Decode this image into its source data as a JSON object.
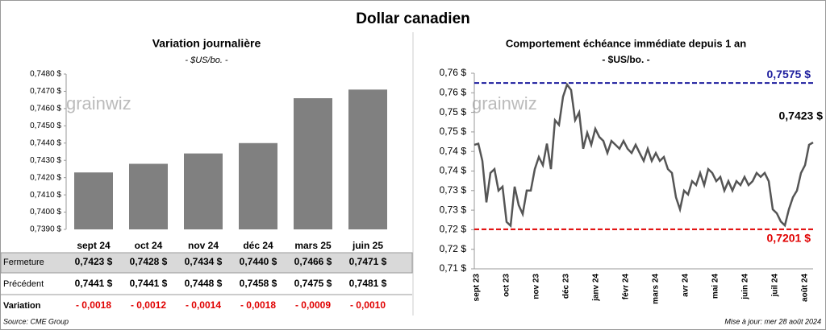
{
  "title": "Dollar canadien",
  "watermark": "grainwiz",
  "chart_data": [
    {
      "type": "bar",
      "title": "Variation  journalière",
      "subtitle": "- $US/bo. -",
      "color": "#808080",
      "categories": [
        "sept 24",
        "oct 24",
        "nov 24",
        "déc 24",
        "mars 25",
        "juin 25"
      ],
      "values": [
        0.7423,
        0.7428,
        0.7434,
        0.744,
        0.7466,
        0.7471
      ],
      "ylim": [
        0.739,
        0.748
      ],
      "yticks": [
        {
          "value": 0.739,
          "label": "0,7390 $"
        },
        {
          "value": 0.74,
          "label": "0,7400 $"
        },
        {
          "value": 0.741,
          "label": "0,7410 $"
        },
        {
          "value": 0.742,
          "label": "0,7420 $"
        },
        {
          "value": 0.743,
          "label": "0,7430 $"
        },
        {
          "value": 0.744,
          "label": "0,7440 $"
        },
        {
          "value": 0.745,
          "label": "0,7450 $"
        },
        {
          "value": 0.746,
          "label": "0,7460 $"
        },
        {
          "value": 0.747,
          "label": "0,7470 $"
        },
        {
          "value": 0.748,
          "label": "0,7480 $"
        }
      ]
    },
    {
      "type": "line",
      "title": "Comportement échéance immédiate depuis 1 an",
      "subtitle": "- $US/bo. -",
      "color": "#555555",
      "x_labels": [
        "sept 23",
        "oct 23",
        "nov 23",
        "déc 23",
        "janv 24",
        "févr 24",
        "mars 24",
        "avr 24",
        "mai 24",
        "juin 24",
        "juil 24",
        "août 24"
      ],
      "values": [
        0.7417,
        0.742,
        0.7376,
        0.727,
        0.7345,
        0.7355,
        0.73,
        0.731,
        0.722,
        0.721,
        0.731,
        0.7263,
        0.724,
        0.73,
        0.73,
        0.7355,
        0.7386,
        0.7365,
        0.742,
        0.7355,
        0.748,
        0.7468,
        0.754,
        0.7571,
        0.7557,
        0.748,
        0.75,
        0.7407,
        0.7448,
        0.7417,
        0.7458,
        0.7437,
        0.7427,
        0.7396,
        0.7427,
        0.7417,
        0.7407,
        0.7427,
        0.7407,
        0.7396,
        0.7417,
        0.7396,
        0.7376,
        0.7407,
        0.7376,
        0.7396,
        0.7376,
        0.7386,
        0.7355,
        0.7345,
        0.7283,
        0.7252,
        0.73,
        0.729,
        0.7324,
        0.7314,
        0.7345,
        0.7314,
        0.7355,
        0.7345,
        0.7324,
        0.7335,
        0.73,
        0.7324,
        0.73,
        0.7324,
        0.7314,
        0.7335,
        0.7314,
        0.7324,
        0.7345,
        0.7335,
        0.7345,
        0.7324,
        0.7252,
        0.7242,
        0.7221,
        0.7211,
        0.7252,
        0.7283,
        0.73,
        0.7345,
        0.7365,
        0.7417,
        0.7423
      ],
      "end_label": "0,7423 $",
      "reference_lines": [
        {
          "value": 0.7575,
          "label": "0,7575 $",
          "color": "#1f1f9e"
        },
        {
          "value": 0.7201,
          "label": "0,7201 $",
          "color": "#e00000"
        }
      ],
      "ylim": [
        0.71,
        0.76
      ],
      "yticks": [
        {
          "value": 0.71,
          "label": "0,71 $"
        },
        {
          "value": 0.715,
          "label": "0,72 $"
        },
        {
          "value": 0.72,
          "label": "0,72 $"
        },
        {
          "value": 0.725,
          "label": "0,73 $"
        },
        {
          "value": 0.73,
          "label": "0,73 $"
        },
        {
          "value": 0.735,
          "label": "0,74 $"
        },
        {
          "value": 0.74,
          "label": "0,74 $"
        },
        {
          "value": 0.745,
          "label": "0,75 $"
        },
        {
          "value": 0.75,
          "label": "0,75 $"
        },
        {
          "value": 0.755,
          "label": "0,76 $"
        },
        {
          "value": 0.76,
          "label": "0,76 $"
        }
      ]
    }
  ],
  "table": {
    "rows": [
      [
        "Fermeture",
        "0,7423 $",
        "0,7428 $",
        "0,7434 $",
        "0,7440 $",
        "0,7466 $",
        "0,7471 $"
      ],
      [
        "Précédent",
        "0,7441 $",
        "0,7441 $",
        "0,7448 $",
        "0,7458 $",
        "0,7475 $",
        "0,7481 $"
      ],
      [
        "Variation",
        "- 0,0018",
        "- 0,0012",
        "- 0,0014",
        "- 0,0018",
        "- 0,0009",
        "- 0,0010"
      ]
    ]
  },
  "footer": {
    "source": "Source: CME Group",
    "updated": "Mise à jour: mer 28 août 2024"
  }
}
